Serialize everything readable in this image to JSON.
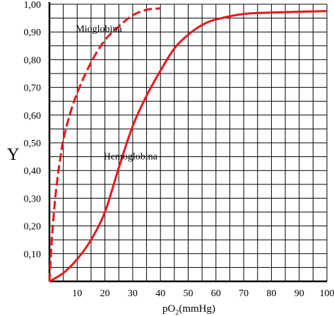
{
  "chart_data": {
    "type": "line",
    "xlabel": "pO₂(mmHg)",
    "ylabel": "Y",
    "xlim": [
      0,
      100
    ],
    "ylim": [
      0,
      1.0
    ],
    "x_ticks": [
      10,
      20,
      30,
      40,
      50,
      60,
      70,
      80,
      90,
      100
    ],
    "x_tick_labels": [
      "10",
      "20",
      "30",
      "40",
      "50",
      "60",
      "70",
      "80",
      "90",
      "100"
    ],
    "y_ticks": [
      0.1,
      0.2,
      0.3,
      0.4,
      0.5,
      0.6,
      0.7,
      0.8,
      0.9,
      1.0
    ],
    "y_tick_labels": [
      "0,10",
      "0,20",
      "0,30",
      "0,40",
      "0,50",
      "0,60",
      "0,70",
      "0,80",
      "0,90",
      "1,00"
    ],
    "grid": true,
    "grid_x_step": 5,
    "grid_y_step": 0.05,
    "series": [
      {
        "name": "Mioglobina",
        "color": "#e8161b",
        "style": "dashed",
        "x": [
          0,
          1,
          2,
          3,
          4,
          5,
          7,
          10,
          15,
          20,
          25,
          30,
          35,
          40
        ],
        "y": [
          0,
          0.17,
          0.29,
          0.38,
          0.45,
          0.51,
          0.59,
          0.68,
          0.79,
          0.87,
          0.92,
          0.96,
          0.98,
          0.985
        ]
      },
      {
        "name": "Hemoglobina",
        "color": "#e8161b",
        "style": "solid",
        "x": [
          0,
          5,
          10,
          15,
          20,
          25,
          30,
          35,
          40,
          45,
          50,
          55,
          60,
          70,
          80,
          90,
          100
        ],
        "y": [
          0,
          0.03,
          0.08,
          0.15,
          0.25,
          0.41,
          0.56,
          0.67,
          0.76,
          0.84,
          0.89,
          0.925,
          0.945,
          0.965,
          0.97,
          0.973,
          0.975
        ]
      }
    ],
    "annotations": [
      {
        "text": "Mioglobina",
        "x": 9.5,
        "y": 0.9
      },
      {
        "text": "Hemoglobina",
        "x": 19.5,
        "y": 0.44
      }
    ]
  }
}
